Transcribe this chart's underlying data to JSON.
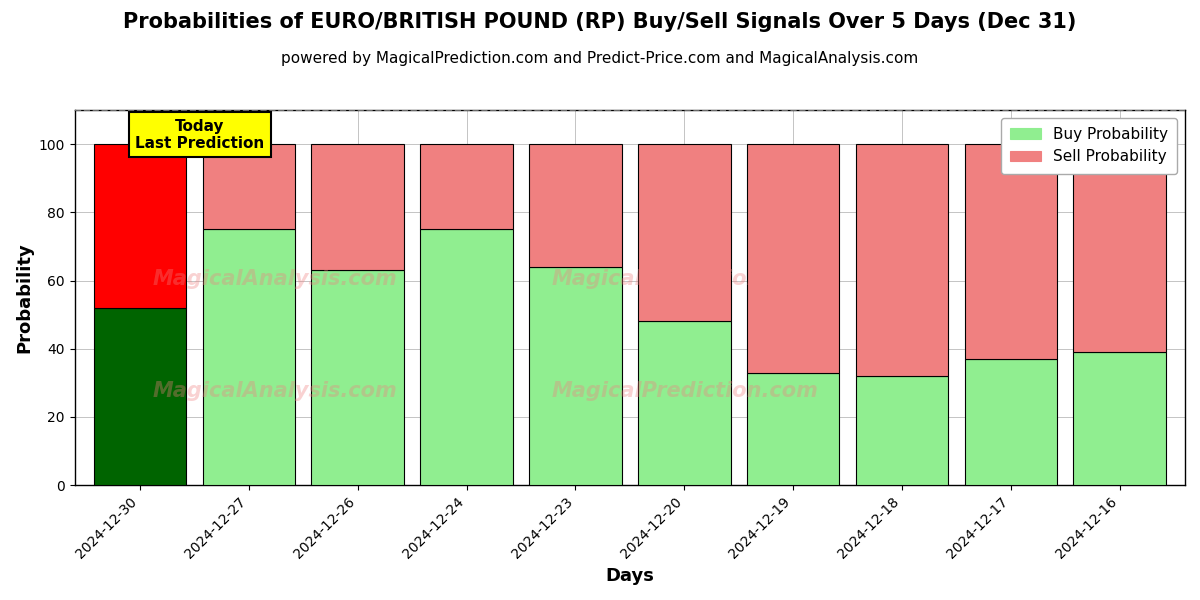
{
  "title": "Probabilities of EURO/BRITISH POUND (RP) Buy/Sell Signals Over 5 Days (Dec 31)",
  "subtitle": "powered by MagicalPrediction.com and Predict-Price.com and MagicalAnalysis.com",
  "xlabel": "Days",
  "ylabel": "Probability",
  "dates": [
    "2024-12-30",
    "2024-12-27",
    "2024-12-26",
    "2024-12-24",
    "2024-12-23",
    "2024-12-20",
    "2024-12-19",
    "2024-12-18",
    "2024-12-17",
    "2024-12-16"
  ],
  "buy_values": [
    52,
    75,
    63,
    75,
    64,
    48,
    33,
    32,
    37,
    39
  ],
  "sell_values": [
    48,
    25,
    37,
    25,
    36,
    52,
    67,
    68,
    63,
    61
  ],
  "today_buy_color": "#006400",
  "today_sell_color": "#FF0000",
  "buy_color": "#90EE90",
  "sell_color": "#F08080",
  "bar_edge_color": "#000000",
  "ylim": [
    0,
    110
  ],
  "dashed_line_y": 110,
  "watermark_texts": [
    "MagicalAnalysis.com",
    "MagicalPrediction.com"
  ],
  "watermark_color": "#F08080",
  "watermark_alpha": 0.35,
  "legend_buy_label": "Buy Probability",
  "legend_sell_label": "Sell Probability",
  "today_label_line1": "Today",
  "today_label_line2": "Last Prediction",
  "today_box_color": "#FFFF00",
  "today_box_edge": "#000000",
  "title_fontsize": 15,
  "subtitle_fontsize": 11,
  "axis_label_fontsize": 13,
  "tick_fontsize": 10,
  "background_color": "#ffffff",
  "grid_color": "#aaaaaa",
  "bar_width": 0.85
}
